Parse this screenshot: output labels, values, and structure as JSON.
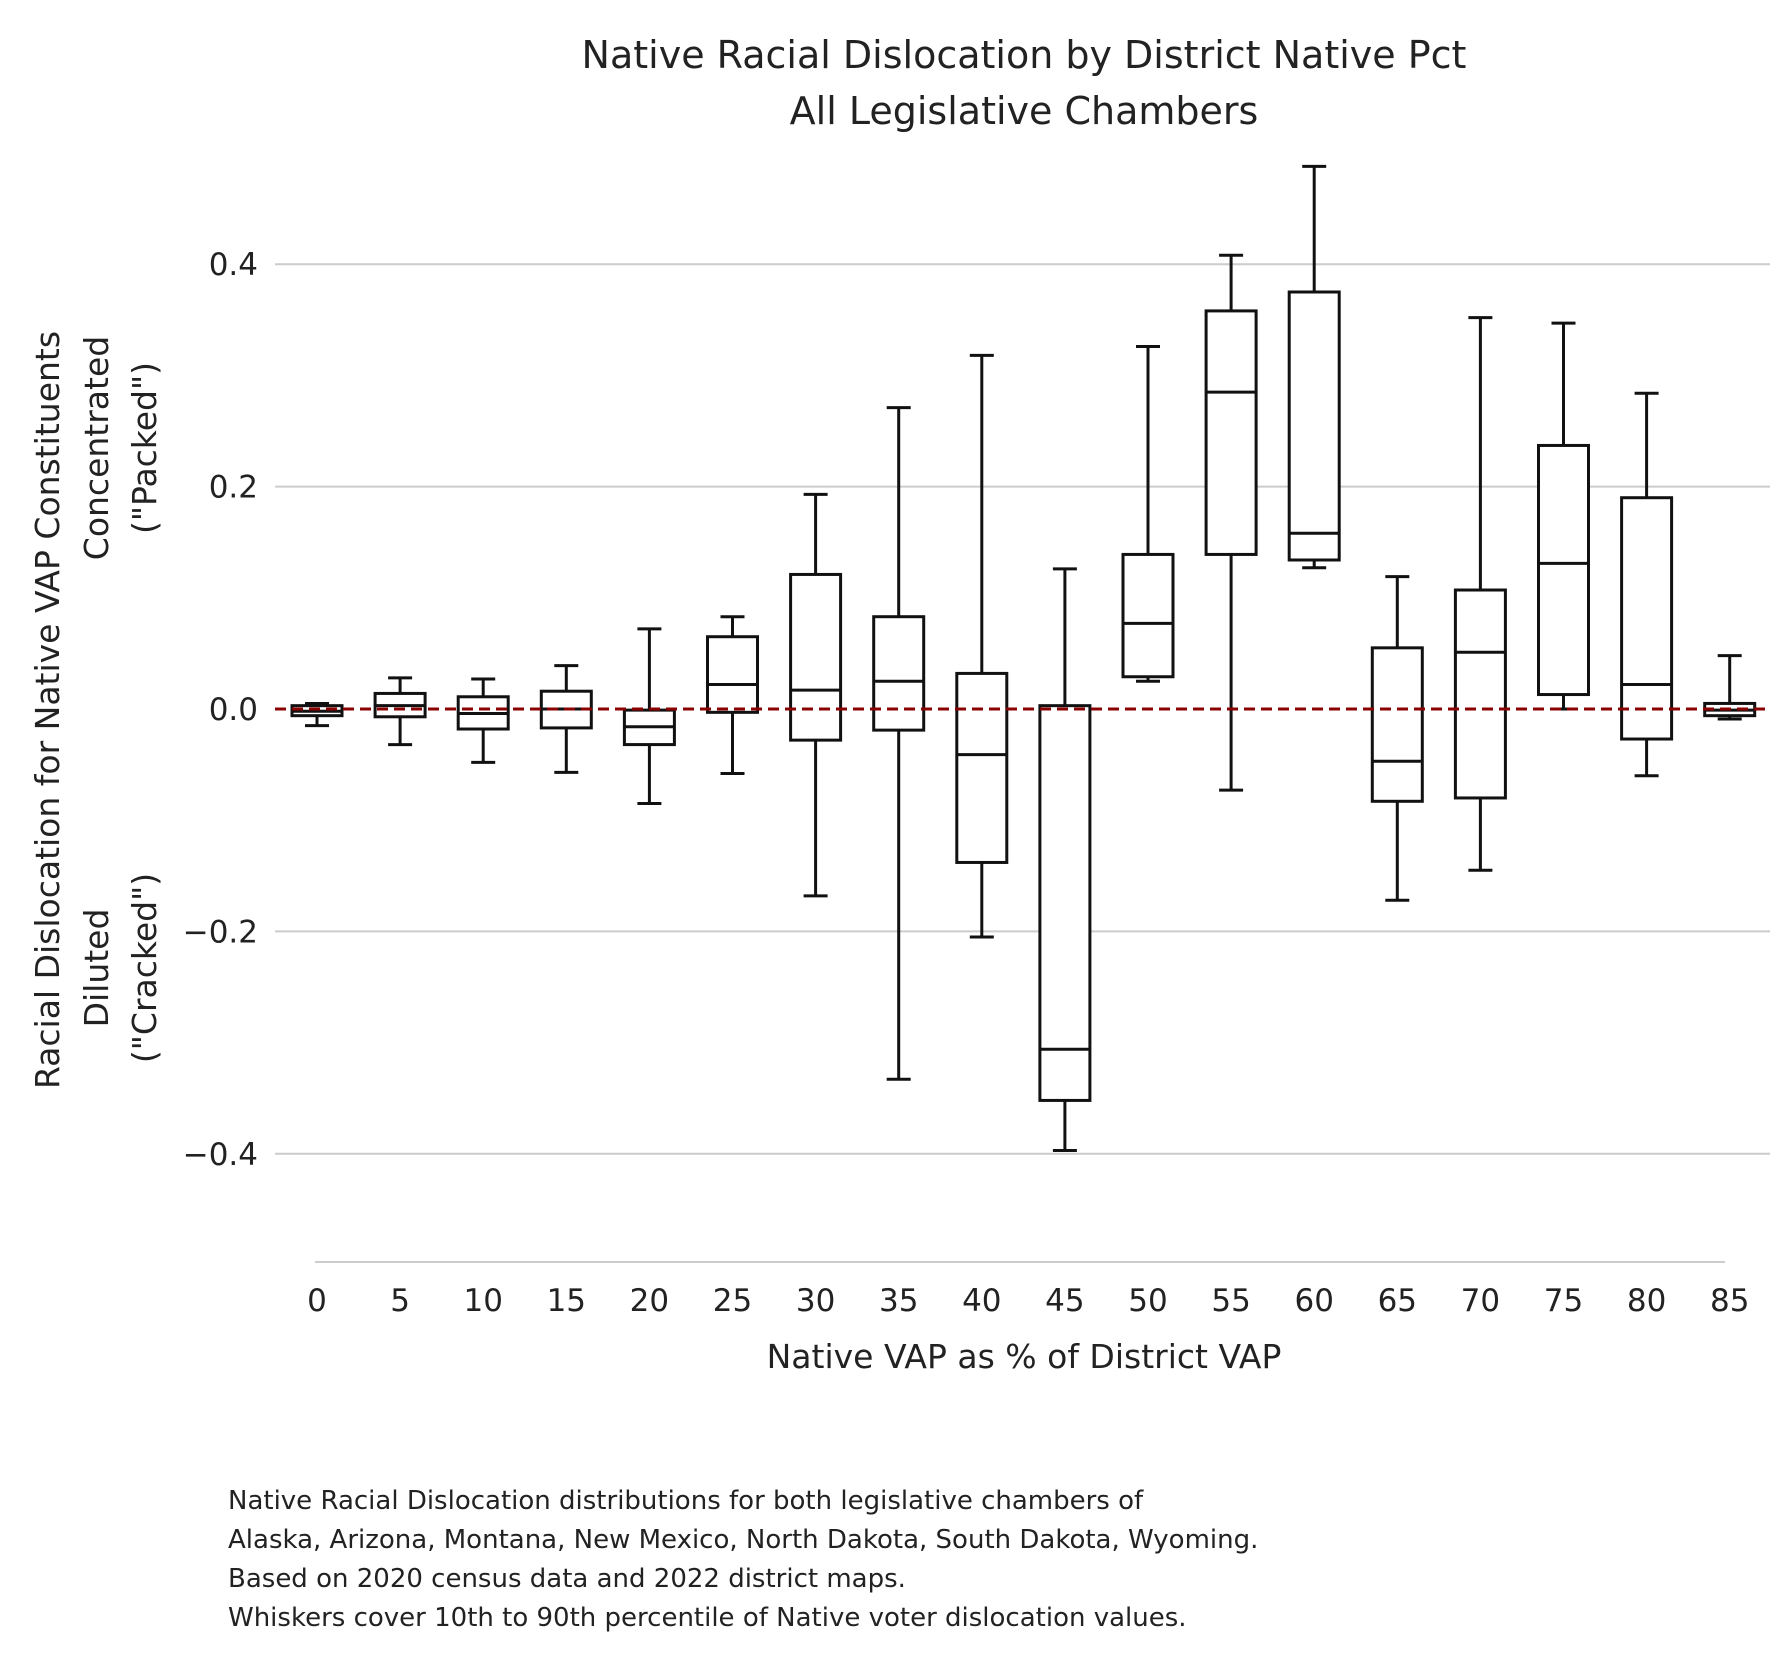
{
  "chart_data": {
    "type": "box",
    "title": [
      "Native Racial Dislocation by District Native Pct",
      "All Legislative Chambers"
    ],
    "xlabel": "Native VAP as % of District VAP",
    "ylabel": [
      "Racial Dislocation for Native VAP Constituents",
      "Concentrated",
      "(\"Packed\")",
      "Diluted",
      "(\"Cracked\")"
    ],
    "ylim": [
      -0.5,
      0.5
    ],
    "yticks": [
      -0.4,
      -0.2,
      0.0,
      0.2,
      0.4
    ],
    "ytick_labels": [
      "−0.4",
      "−0.2",
      "0.0",
      "0.2",
      "0.4"
    ],
    "grid": "horizontal",
    "reference_line": {
      "y": 0.0,
      "style": "dashed",
      "color": "#8b0000"
    },
    "categories": [
      "0",
      "5",
      "10",
      "15",
      "20",
      "25",
      "30",
      "35",
      "40",
      "45",
      "50",
      "55",
      "60",
      "65",
      "70",
      "75",
      "80",
      "85"
    ],
    "boxes": [
      {
        "x": "0",
        "whislo": -0.015,
        "q1": -0.006,
        "med": -0.002,
        "q3": 0.003,
        "whishi": 0.005
      },
      {
        "x": "5",
        "whislo": -0.032,
        "q1": -0.007,
        "med": 0.003,
        "q3": 0.014,
        "whishi": 0.028
      },
      {
        "x": "10",
        "whislo": -0.048,
        "q1": -0.018,
        "med": -0.004,
        "q3": 0.011,
        "whishi": 0.027
      },
      {
        "x": "15",
        "whislo": -0.057,
        "q1": -0.017,
        "med": 0.0,
        "q3": 0.016,
        "whishi": 0.039
      },
      {
        "x": "20",
        "whislo": -0.085,
        "q1": -0.032,
        "med": -0.016,
        "q3": -0.001,
        "whishi": 0.072
      },
      {
        "x": "25",
        "whislo": -0.058,
        "q1": -0.003,
        "med": 0.022,
        "q3": 0.065,
        "whishi": 0.083
      },
      {
        "x": "30",
        "whislo": -0.168,
        "q1": -0.028,
        "med": 0.017,
        "q3": 0.121,
        "whishi": 0.193
      },
      {
        "x": "35",
        "whislo": -0.333,
        "q1": -0.019,
        "med": 0.025,
        "q3": 0.083,
        "whishi": 0.271
      },
      {
        "x": "40",
        "whislo": -0.205,
        "q1": -0.138,
        "med": -0.041,
        "q3": 0.032,
        "whishi": 0.318
      },
      {
        "x": "45",
        "whislo": -0.397,
        "q1": -0.352,
        "med": -0.306,
        "q3": 0.003,
        "whishi": 0.126
      },
      {
        "x": "50",
        "whislo": 0.025,
        "q1": 0.029,
        "med": 0.077,
        "q3": 0.139,
        "whishi": 0.326
      },
      {
        "x": "55",
        "whislo": -0.073,
        "q1": 0.139,
        "med": 0.285,
        "q3": 0.358,
        "whishi": 0.408
      },
      {
        "x": "60",
        "whislo": 0.127,
        "q1": 0.134,
        "med": 0.158,
        "q3": 0.375,
        "whishi": 0.488
      },
      {
        "x": "65",
        "whislo": -0.172,
        "q1": -0.083,
        "med": -0.047,
        "q3": 0.055,
        "whishi": 0.119
      },
      {
        "x": "70",
        "whislo": -0.145,
        "q1": -0.08,
        "med": 0.051,
        "q3": 0.107,
        "whishi": 0.352
      },
      {
        "x": "75",
        "whislo": 0.0,
        "q1": 0.013,
        "med": 0.131,
        "q3": 0.237,
        "whishi": 0.347
      },
      {
        "x": "80",
        "whislo": -0.06,
        "q1": -0.027,
        "med": 0.022,
        "q3": 0.19,
        "whishi": 0.284
      },
      {
        "x": "85",
        "whislo": -0.009,
        "q1": -0.006,
        "med": -0.001,
        "q3": 0.005,
        "whishi": 0.048
      }
    ]
  },
  "caption": [
    "Native Racial Dislocation distributions for both legislative chambers of",
    "Alaska, Arizona, Montana, New Mexico, North Dakota, South Dakota, Wyoming.",
    "Based on 2020 census data and 2022 district maps.",
    "Whiskers cover 10th to 90th percentile of Native voter dislocation values."
  ]
}
